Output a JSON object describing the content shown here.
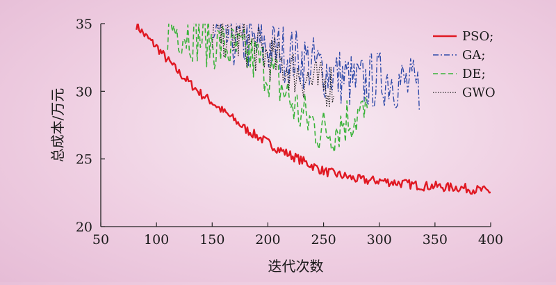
{
  "chart_data": {
    "type": "line",
    "xlabel": "迭代次数",
    "ylabel": "总成本/万元",
    "xlim": [
      50,
      400
    ],
    "ylim": [
      20,
      35
    ],
    "x_ticks": [
      "50",
      "100",
      "150",
      "200",
      "250",
      "300",
      "350",
      "400"
    ],
    "y_ticks": [
      "20",
      "25",
      "30",
      "35"
    ],
    "legend_position": "top-right",
    "series": [
      {
        "name": "PSO;",
        "color": "#e01822",
        "style": "solid",
        "x": [
          82,
          90,
          100,
          110,
          120,
          130,
          140,
          150,
          160,
          170,
          180,
          190,
          200,
          210,
          220,
          230,
          240,
          250,
          260,
          270,
          280,
          290,
          300,
          310,
          320,
          330,
          340,
          350,
          360,
          370,
          380,
          390,
          400
        ],
        "y": [
          34.9,
          34.1,
          33.3,
          32.3,
          31.4,
          30.6,
          29.8,
          29.2,
          28.5,
          27.9,
          27.2,
          26.7,
          26.2,
          25.7,
          25.3,
          24.9,
          24.5,
          24.1,
          23.9,
          23.7,
          23.5,
          23.4,
          23.4,
          23.3,
          23.2,
          23.1,
          23.0,
          23.0,
          22.9,
          22.9,
          22.8,
          22.7,
          22.6
        ]
      },
      {
        "name": "GA;",
        "color": "#2e4aa8",
        "style": "dashdot",
        "x": [
          150,
          170,
          190,
          210,
          230,
          250,
          270,
          280,
          290,
          300,
          310,
          320,
          330,
          337
        ],
        "y": [
          34.0,
          33.8,
          33.4,
          33.0,
          32.4,
          31.6,
          30.9,
          30.5,
          30.7,
          30.9,
          31.0,
          30.6,
          30.3,
          30.0
        ]
      },
      {
        "name": "DE;",
        "color": "#39b339",
        "style": "dashed",
        "x": [
          110,
          130,
          150,
          170,
          190,
          200,
          210,
          220,
          230,
          240,
          250,
          260,
          270,
          280,
          290
        ],
        "y": [
          34.8,
          34.3,
          33.6,
          33.0,
          32.3,
          31.6,
          30.6,
          29.3,
          28.3,
          27.6,
          27.0,
          27.3,
          27.9,
          28.3,
          28.0
        ]
      },
      {
        "name": "GWO",
        "color": "#1a1a1a",
        "style": "dotted",
        "x": [
          150,
          160,
          170,
          180,
          190,
          200,
          210,
          220,
          230,
          240,
          250,
          260
        ],
        "y": [
          34.6,
          34.2,
          33.9,
          33.5,
          33.1,
          32.6,
          32.1,
          31.6,
          31.2,
          30.7,
          30.4,
          30.6
        ]
      }
    ]
  }
}
